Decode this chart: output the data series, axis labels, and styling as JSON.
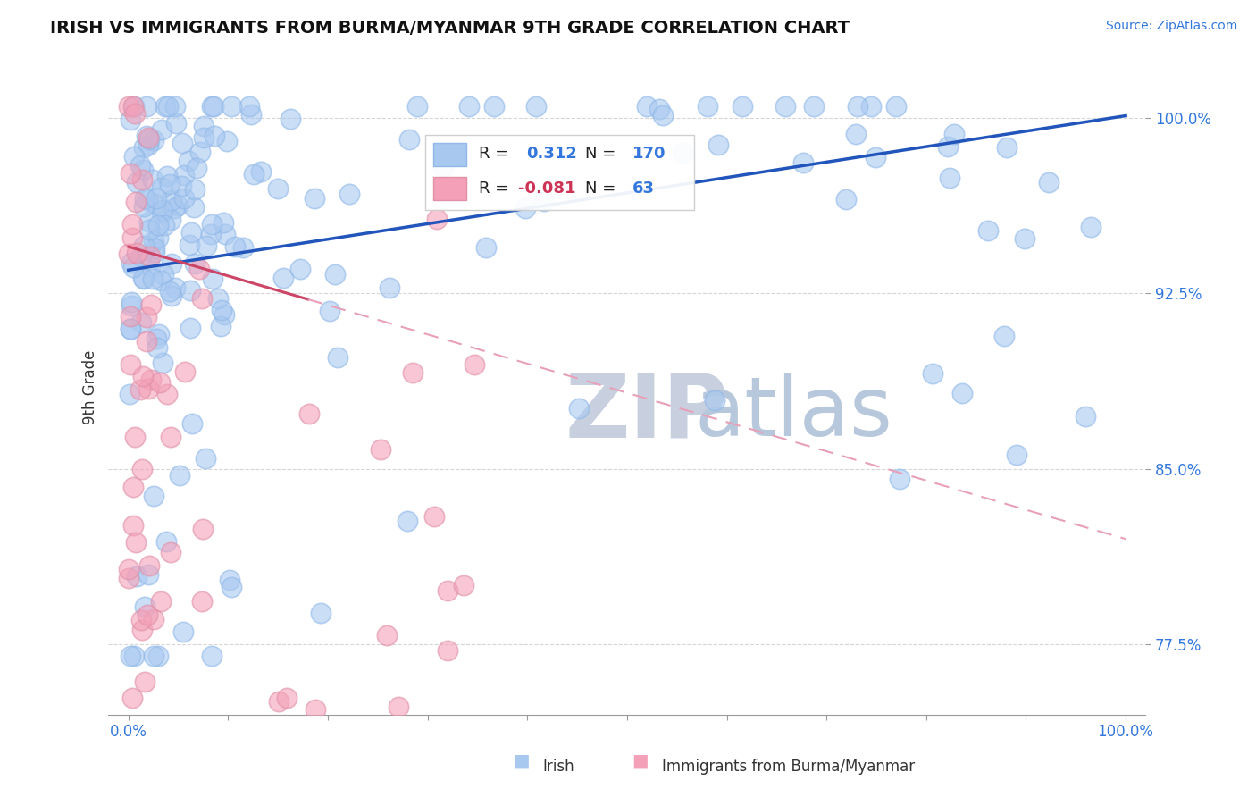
{
  "title": "IRISH VS IMMIGRANTS FROM BURMA/MYANMAR 9TH GRADE CORRELATION CHART",
  "source_text": "Source: ZipAtlas.com",
  "ylabel": "9th Grade",
  "xlim": [
    -0.02,
    1.02
  ],
  "ylim": [
    0.745,
    1.025
  ],
  "yticks": [
    0.775,
    0.85,
    0.925,
    1.0
  ],
  "ytick_labels": [
    "77.5%",
    "85.0%",
    "92.5%",
    "100.0%"
  ],
  "xtick_labels": [
    "0.0%",
    "100.0%"
  ],
  "irish_R": 0.312,
  "irish_N": 170,
  "burma_R": -0.081,
  "burma_N": 63,
  "irish_color": "#a8c8f0",
  "irish_edge_color": "#90b8e8",
  "burma_color": "#f4a0b8",
  "burma_edge_color": "#e090a8",
  "irish_line_color": "#2255bb",
  "burma_solid_color": "#cc4466",
  "burma_dash_color": "#e8a0b8",
  "watermark_zip_color": "#c8d0e0",
  "watermark_atlas_color": "#b8c8dc",
  "legend_edge_color": "#cccccc",
  "background_color": "#ffffff",
  "grid_color": "#cccccc",
  "axis_color": "#999999",
  "tick_label_color_blue": "#3377dd",
  "tick_label_color_dark": "#333333"
}
